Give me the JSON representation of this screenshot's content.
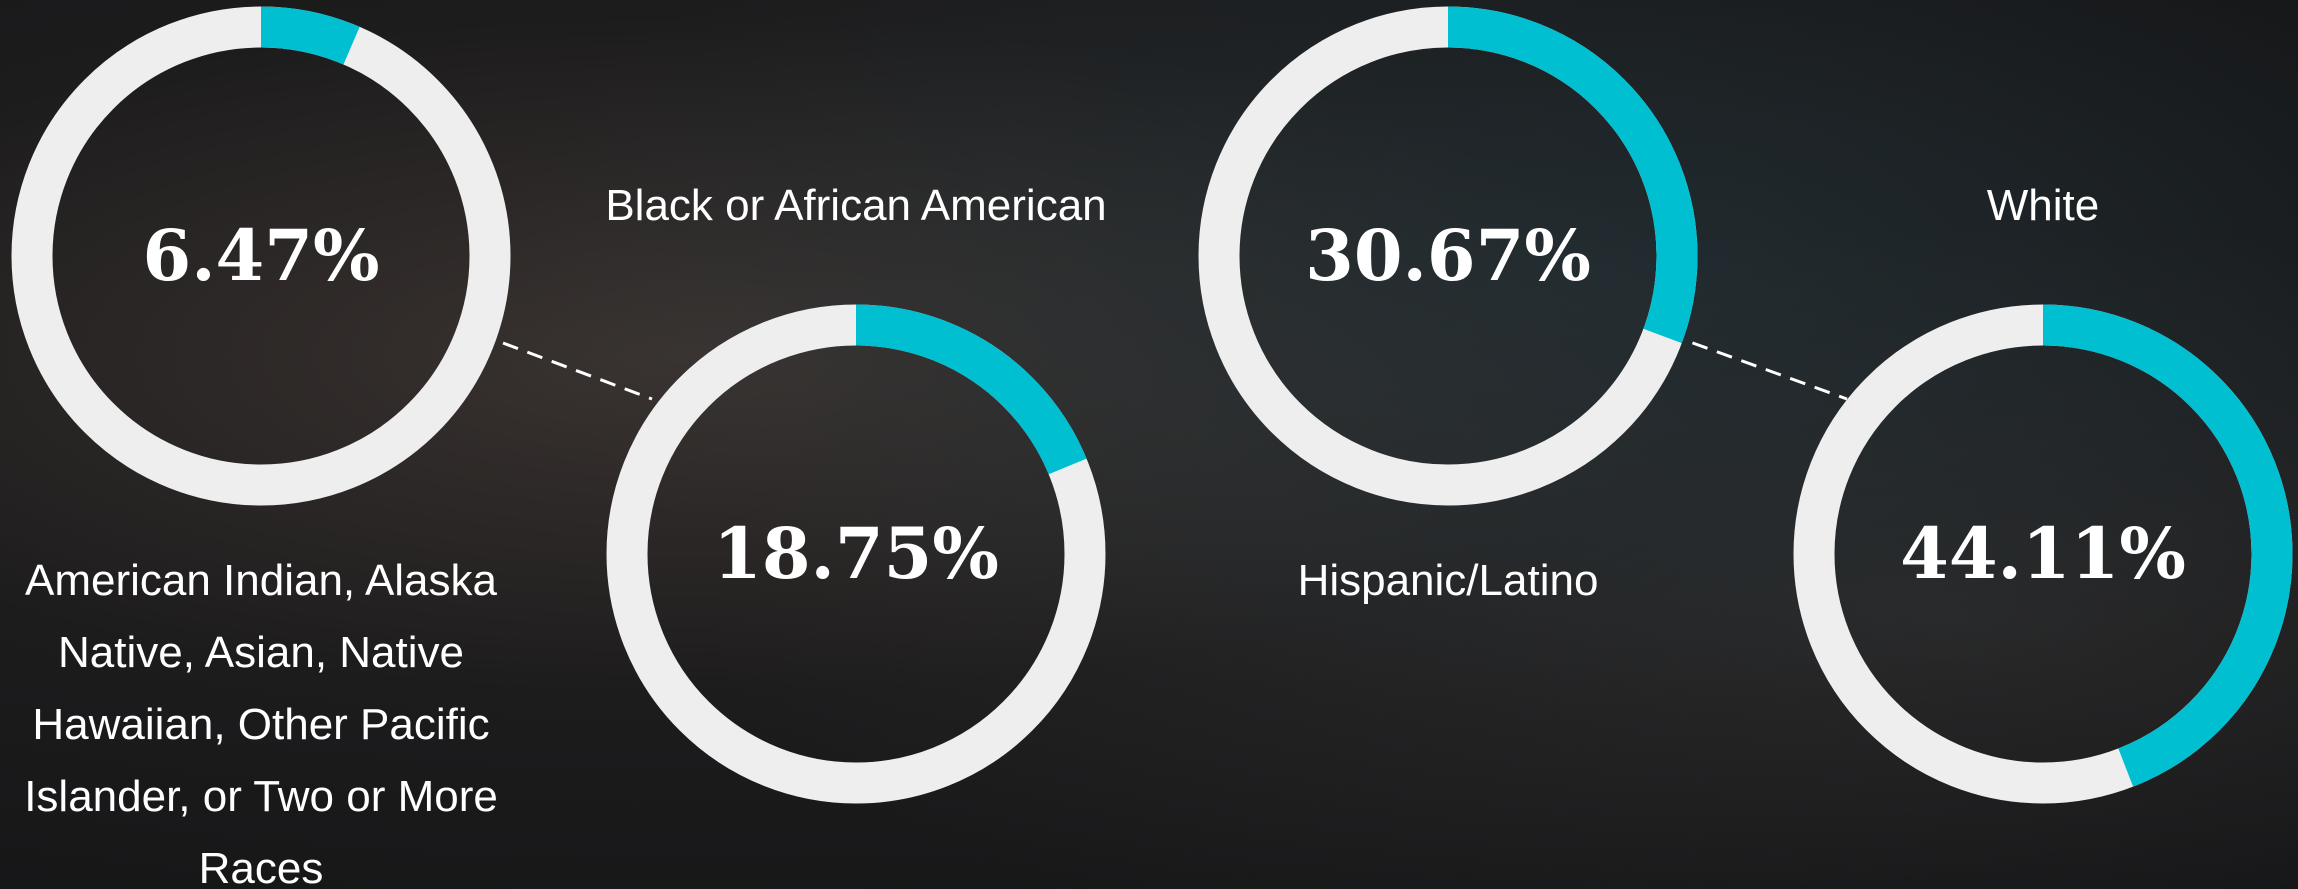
{
  "chart_data": {
    "type": "donut",
    "categories": [
      "American Indian, Alaska Native, Asian, Native Hawaiian, Other Pacific Islander, or Two or More Races",
      "Black or African American",
      "Hispanic/Latino",
      "White"
    ],
    "values": [
      6.47,
      18.75,
      30.67,
      44.11
    ],
    "value_labels": [
      "6.47%",
      "18.75%",
      "30.67%",
      "44.11%"
    ],
    "color": "#00bfd0",
    "track_color": "#eeeeee"
  }
}
